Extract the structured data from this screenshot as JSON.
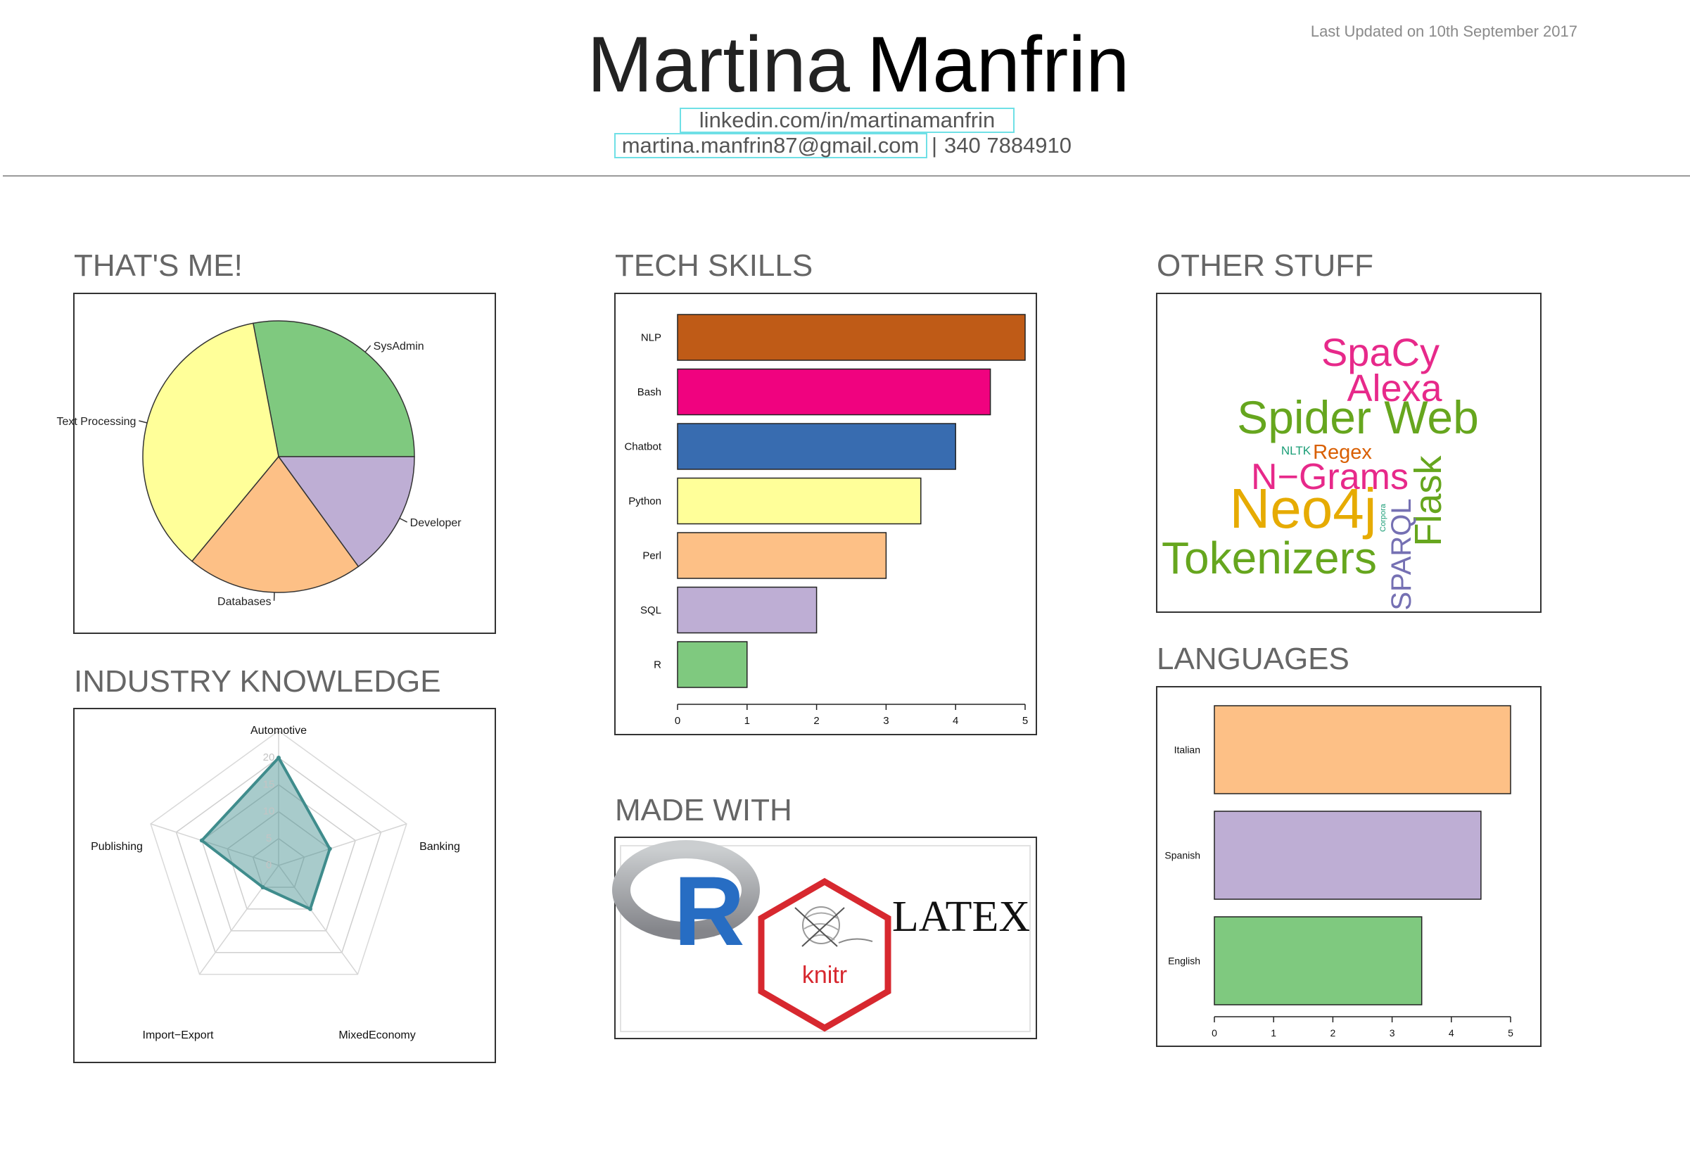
{
  "header": {
    "first_name": "Martina",
    "last_name": "Manfrin",
    "last_updated": "Last Updated on 10th September 2017",
    "linkedin": "linkedin.com/in/martinamanfrin",
    "email": "martina.manfrin87@gmail.com",
    "separator": "|",
    "phone": "340 7884910"
  },
  "sections": {
    "thats_me": "THAT'S ME!",
    "industry": "INDUSTRY KNOWLEDGE",
    "tech": "TECH SKILLS",
    "made_with": "MADE WITH",
    "other": "OTHER STUFF",
    "languages": "LANGUAGES"
  },
  "chart_data": [
    {
      "id": "thats-me",
      "type": "pie",
      "slices": [
        {
          "label": "SysAdmin",
          "value": 28,
          "color": "#7fc97f"
        },
        {
          "label": "Text Processing",
          "value": 36,
          "color": "#ffff99"
        },
        {
          "label": "Databases",
          "value": 21,
          "color": "#fdc086"
        },
        {
          "label": "Developer",
          "value": 15,
          "color": "#beaed4"
        }
      ]
    },
    {
      "id": "industry-knowledge",
      "type": "radar",
      "axes": [
        "Automotive",
        "Banking",
        "MixedEconomy",
        "Import−Export",
        "Publishing"
      ],
      "values": [
        20,
        10,
        10,
        5,
        15
      ],
      "max": 20,
      "ticks": [
        "0",
        "5",
        "10",
        "15",
        "20"
      ],
      "color": "#3f8c8c"
    },
    {
      "id": "tech-skills",
      "type": "bar",
      "orientation": "horizontal",
      "categories": [
        "NLP",
        "Bash",
        "Chatbot",
        "Python",
        "Perl",
        "SQL",
        "R"
      ],
      "values": [
        5,
        4.5,
        4,
        3.5,
        3,
        2,
        1
      ],
      "colors": [
        "#bf5b17",
        "#f0027f",
        "#386cb0",
        "#ffff99",
        "#fdc086",
        "#beaed4",
        "#7fc97f"
      ],
      "xlim": [
        0,
        5
      ],
      "xticks": [
        "0",
        "1",
        "2",
        "3",
        "4",
        "5"
      ]
    },
    {
      "id": "languages",
      "type": "bar",
      "orientation": "horizontal",
      "categories": [
        "Italian",
        "Spanish",
        "English"
      ],
      "values": [
        5,
        4.5,
        3.5
      ],
      "colors": [
        "#fdc086",
        "#beaed4",
        "#7fc97f"
      ],
      "xlim": [
        0,
        5
      ],
      "xticks": [
        "0",
        "1",
        "2",
        "3",
        "4",
        "5"
      ]
    }
  ],
  "wordcloud": [
    {
      "text": "SpaCy",
      "color": "#e7298a"
    },
    {
      "text": "Alexa",
      "color": "#e7298a"
    },
    {
      "text": "Spider Web",
      "color": "#66a61e"
    },
    {
      "text": "NLTK",
      "color": "#1b9e77"
    },
    {
      "text": "Regex",
      "color": "#d95f02"
    },
    {
      "text": "N−Grams",
      "color": "#e7298a"
    },
    {
      "text": "Flask",
      "color": "#66a61e"
    },
    {
      "text": "Neo4j",
      "color": "#e6ab02"
    },
    {
      "text": "Corpora",
      "color": "#1b9e77"
    },
    {
      "text": "SPARQL",
      "color": "#7570b3"
    },
    {
      "text": "Tokenizers",
      "color": "#66a61e"
    }
  ],
  "made_with": {
    "r_logo": "R",
    "knitr_logo": "knitr",
    "latex_logo": "LATEX"
  },
  "icons": {
    "r": "r-logo-icon",
    "knitr": "knitr-logo-icon",
    "latex": "latex-logo-icon"
  }
}
